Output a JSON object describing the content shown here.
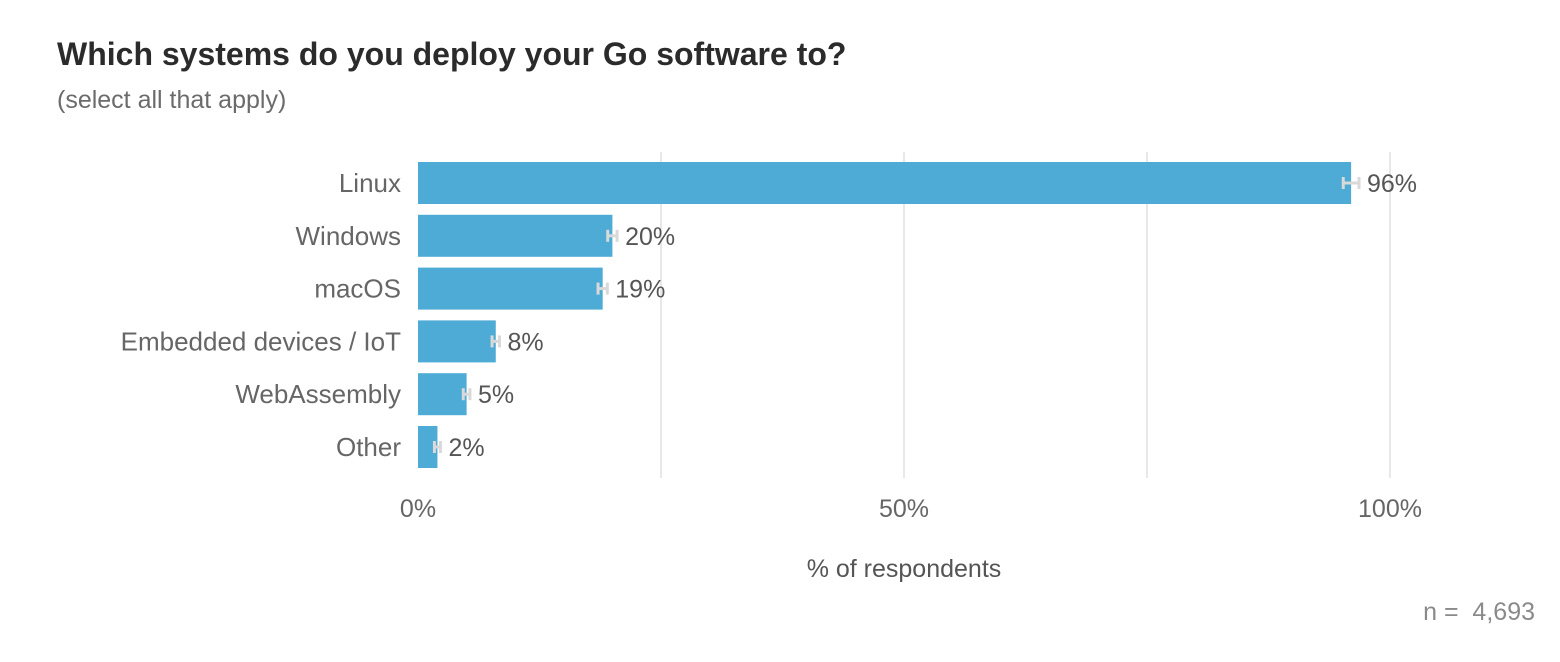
{
  "chart": {
    "title": "Which systems do you deploy your Go software to?",
    "subtitle": "(select all that apply)",
    "n_label": "n =  4,693"
  },
  "chart_data": {
    "type": "bar",
    "orientation": "horizontal",
    "title": "Which systems do you deploy your Go software to?",
    "subtitle": "(select all that apply)",
    "categories": [
      "Linux",
      "Windows",
      "macOS",
      "Embedded devices / IoT",
      "WebAssembly",
      "Other"
    ],
    "values": [
      96,
      20,
      19,
      8,
      5,
      2
    ],
    "value_labels": [
      "96%",
      "20%",
      "19%",
      "8%",
      "5%",
      "2%"
    ],
    "error_bars": true,
    "xlabel": "% of respondents",
    "ylabel": "",
    "xlim": [
      0,
      100
    ],
    "x_ticks": [
      0,
      50,
      100
    ],
    "x_tick_labels": [
      "0%",
      "50%",
      "100%"
    ],
    "grid": true,
    "bar_color": "#4dabd5",
    "error_bar_color": "#d9d9d9",
    "grid_color": "#e8e8e8",
    "n": "4,693"
  }
}
